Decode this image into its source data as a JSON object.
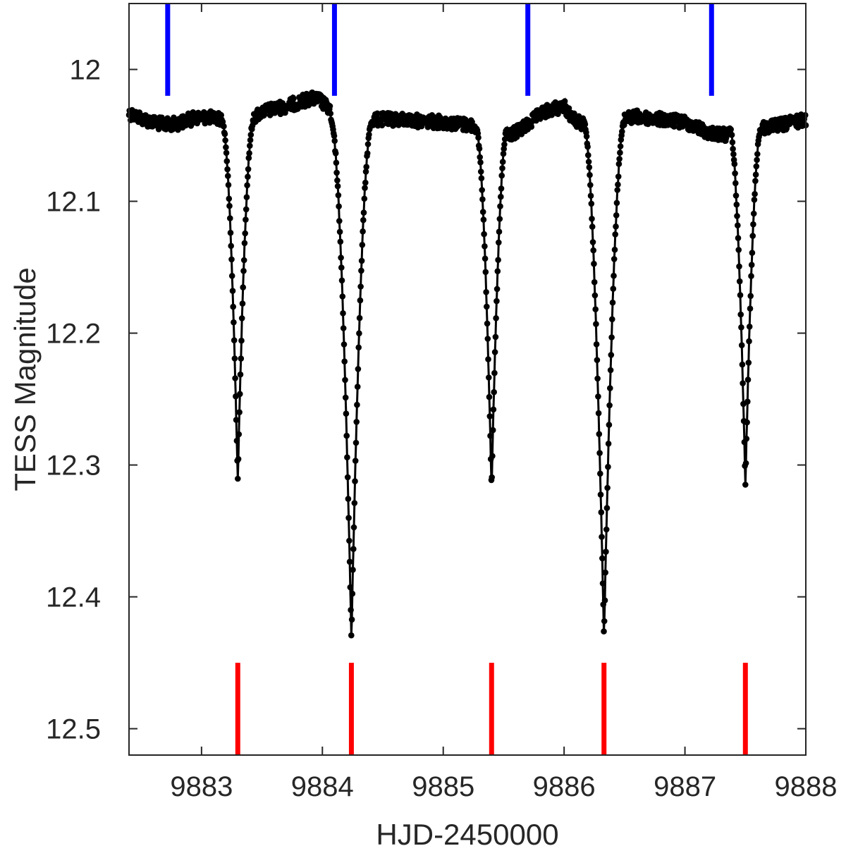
{
  "chart_data": {
    "type": "scatter",
    "title": "",
    "xlabel": "HJD-2450000",
    "ylabel": "TESS Magnitude",
    "xlim": [
      9882.4,
      9888.0
    ],
    "ylim": [
      11.95,
      12.52
    ],
    "y_reversed": true,
    "grid": false,
    "x_ticks": [
      9883,
      9884,
      9885,
      9886,
      9887,
      9888
    ],
    "x_tick_labels": [
      "9883",
      "9884",
      "9885",
      "9886",
      "9887",
      "9888"
    ],
    "y_ticks": [
      12.0,
      12.1,
      12.2,
      12.3,
      12.4,
      12.5
    ],
    "y_tick_labels": [
      "12",
      "12.1",
      "12.2",
      "12.3",
      "12.4",
      "12.5"
    ],
    "baseline_points": [
      [
        9882.4,
        12.033
      ],
      [
        9882.5,
        12.037
      ],
      [
        9882.6,
        12.04
      ],
      [
        9882.7,
        12.042
      ],
      [
        9882.8,
        12.041
      ],
      [
        9882.9,
        12.038
      ],
      [
        9883.0,
        12.036
      ],
      [
        9883.12,
        12.037
      ],
      [
        9883.4,
        12.038
      ],
      [
        9883.5,
        12.032
      ],
      [
        9883.6,
        12.03
      ],
      [
        9883.7,
        12.028
      ],
      [
        9883.8,
        12.025
      ],
      [
        9883.9,
        12.022
      ],
      [
        9883.98,
        12.023
      ],
      [
        9884.05,
        12.03
      ],
      [
        9884.3,
        12.04
      ],
      [
        9884.4,
        12.038
      ],
      [
        9884.6,
        12.038
      ],
      [
        9884.8,
        12.039
      ],
      [
        9885.0,
        12.04
      ],
      [
        9885.2,
        12.042
      ],
      [
        9885.28,
        12.043
      ],
      [
        9885.52,
        12.05
      ],
      [
        9885.6,
        12.048
      ],
      [
        9885.7,
        12.042
      ],
      [
        9885.8,
        12.034
      ],
      [
        9885.9,
        12.03
      ],
      [
        9886.0,
        12.028
      ],
      [
        9886.08,
        12.038
      ],
      [
        9886.2,
        12.044
      ],
      [
        9886.44,
        12.038
      ],
      [
        9886.6,
        12.036
      ],
      [
        9886.8,
        12.038
      ],
      [
        9887.0,
        12.04
      ],
      [
        9887.2,
        12.048
      ],
      [
        9887.37,
        12.05
      ],
      [
        9887.62,
        12.045
      ],
      [
        9887.8,
        12.042
      ],
      [
        9888.0,
        12.038
      ]
    ],
    "eclipses": [
      {
        "type": "secondary",
        "center": 9883.3,
        "depth": 12.312,
        "half_width": 0.13,
        "edge_mag": 12.04
      },
      {
        "type": "primary",
        "center": 9884.24,
        "depth": 12.432,
        "half_width": 0.17,
        "edge_mag": 12.04
      },
      {
        "type": "secondary",
        "center": 9885.4,
        "depth": 12.318,
        "half_width": 0.13,
        "edge_mag": 12.045
      },
      {
        "type": "primary",
        "center": 9886.33,
        "depth": 12.432,
        "half_width": 0.17,
        "edge_mag": 12.04
      },
      {
        "type": "secondary",
        "center": 9887.5,
        "depth": 12.316,
        "half_width": 0.13,
        "edge_mag": 12.045
      }
    ],
    "blue_markers": {
      "x": [
        9882.72,
        9884.1,
        9885.7,
        9887.22
      ],
      "y_range": [
        11.95,
        12.02
      ],
      "color": "#0000ff"
    },
    "red_markers": {
      "x": [
        9883.3,
        9884.24,
        9885.4,
        9886.33,
        9887.5
      ],
      "y_range": [
        12.45,
        12.52
      ],
      "color": "#ff0000"
    },
    "point_color": "#000000",
    "line_color": "#000000"
  }
}
